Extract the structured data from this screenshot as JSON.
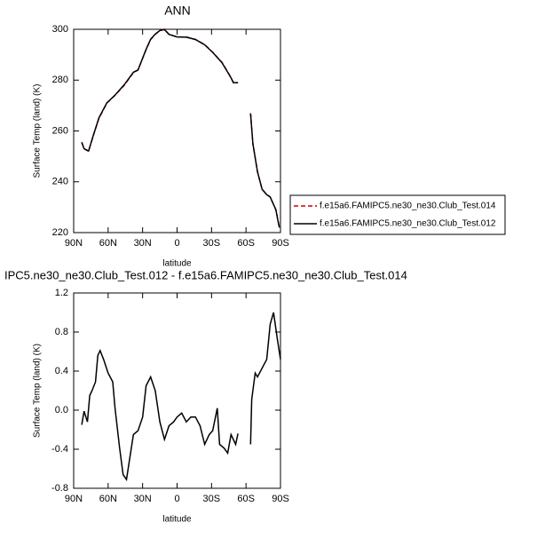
{
  "chart_data": [
    {
      "type": "line",
      "title": "ANN",
      "x_label": "latitude",
      "y_label": "Surface Temp (land) (K)",
      "x": [
        83,
        81,
        77,
        73,
        68,
        61,
        54,
        46,
        38,
        34,
        30.5,
        27,
        23,
        19,
        15,
        11,
        7,
        0,
        -8,
        -16,
        -24,
        -31,
        -39,
        -43,
        -47,
        -49,
        -53,
        -58,
        -64,
        -66,
        -70,
        -74,
        -78,
        -81,
        -86,
        -89
      ],
      "xlim": [
        90,
        -90
      ],
      "xticks": [
        {
          "value": 90,
          "label": "90N"
        },
        {
          "value": 60,
          "label": "60N"
        },
        {
          "value": 30,
          "label": "30N"
        },
        0,
        {
          "value": -30,
          "label": "30S"
        },
        {
          "value": -60,
          "label": "60S"
        },
        {
          "value": -90,
          "label": "90S"
        }
      ],
      "ylim": [
        220,
        300
      ],
      "yticks": [
        220,
        240,
        260,
        280,
        300
      ],
      "legend": "outside-right",
      "series": [
        {
          "name": "f.e15a6.FAMIPC5.ne30_ne30.Club_Test.014",
          "color": "#cc0000",
          "dash": true,
          "values": [
            255.6,
            253,
            252,
            258,
            265,
            271,
            274,
            278,
            283,
            284,
            288,
            292,
            296,
            298,
            299.5,
            300,
            298,
            297,
            297,
            296,
            294,
            291,
            287,
            284,
            281,
            279,
            279,
            null,
            267,
            255,
            244,
            237,
            235,
            234,
            229,
            222
          ]
        },
        {
          "name": "f.e15a6.FAMIPC5.ne30_ne30.Club_Test.012",
          "color": "#000000",
          "dash": false,
          "values": [
            255.5,
            253,
            252.1,
            258.1,
            265.2,
            271.1,
            274.1,
            278.2,
            283.1,
            284,
            288,
            292.1,
            296.1,
            298.1,
            299.5,
            299.9,
            298,
            297,
            296.9,
            296,
            293.9,
            290.9,
            286.9,
            283.9,
            280.9,
            279,
            279,
            null,
            266.8,
            255,
            243.9,
            237,
            234.9,
            234,
            229,
            222
          ]
        }
      ]
    },
    {
      "type": "line",
      "title": "IPC5.ne30_ne30.Club_Test.012 - f.e15a6.FAMIPC5.ne30_ne30.Club_Test.014",
      "x_label": "latitude",
      "y_label": "Surface Temp (land) (K)",
      "x": [
        83,
        81,
        78,
        76,
        74,
        71,
        69,
        67,
        64,
        60,
        56,
        54,
        50,
        47,
        44,
        41,
        38,
        34,
        30,
        27,
        23,
        19,
        15,
        11,
        7,
        3,
        0,
        -4,
        -8,
        -12,
        -16,
        -20,
        -24,
        -28,
        -31,
        -35,
        -37,
        -41,
        -44,
        -47,
        -51,
        -53,
        -58,
        -64,
        -65,
        -68,
        -70,
        -74,
        -78,
        -81,
        -84,
        -87,
        -90
      ],
      "xlim": [
        90,
        -90
      ],
      "xticks": [
        {
          "value": 90,
          "label": "90N"
        },
        {
          "value": 60,
          "label": "60N"
        },
        {
          "value": 30,
          "label": "30N"
        },
        0,
        {
          "value": -30,
          "label": "30S"
        },
        {
          "value": -60,
          "label": "60S"
        },
        {
          "value": -90,
          "label": "90S"
        }
      ],
      "ylim": [
        -0.8,
        1.2
      ],
      "yticks": [
        -0.8,
        -0.4,
        {
          "value": 0,
          "label": "0.0"
        },
        0.4,
        0.8,
        1.2
      ],
      "series": [
        {
          "color": "#000000",
          "dash": false,
          "values": [
            -0.15,
            -0.01,
            -0.12,
            0.15,
            0.2,
            0.29,
            0.56,
            0.61,
            0.52,
            0.38,
            0.29,
            0.02,
            -0.39,
            -0.66,
            -0.71,
            -0.48,
            -0.25,
            -0.21,
            -0.07,
            0.25,
            0.34,
            0.2,
            -0.12,
            -0.3,
            -0.16,
            -0.12,
            -0.07,
            -0.03,
            -0.12,
            -0.07,
            -0.07,
            -0.16,
            -0.35,
            -0.25,
            -0.21,
            0.02,
            -0.35,
            -0.39,
            -0.44,
            -0.25,
            -0.35,
            -0.24,
            null,
            -0.35,
            0.11,
            0.38,
            0.34,
            0.43,
            0.52,
            0.88,
            1.0,
            0.75,
            0.52
          ]
        }
      ]
    }
  ]
}
